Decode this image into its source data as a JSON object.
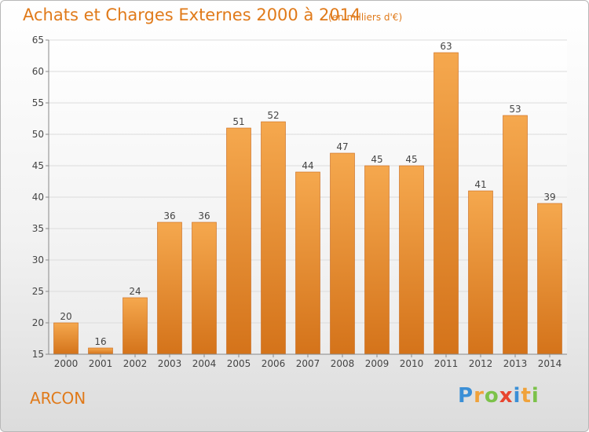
{
  "chart_data": {
    "type": "bar",
    "title": "Achats et Charges Externes 2000 à 2014",
    "subtitle": "(en milliers d'€)",
    "categories": [
      "2000",
      "2001",
      "2002",
      "2003",
      "2004",
      "2005",
      "2006",
      "2007",
      "2008",
      "2009",
      "2010",
      "2011",
      "2012",
      "2013",
      "2014"
    ],
    "values": [
      20,
      16,
      24,
      36,
      36,
      51,
      52,
      44,
      47,
      45,
      45,
      63,
      41,
      53,
      39
    ],
    "ylim": [
      15,
      65
    ],
    "yticks": [
      15,
      20,
      25,
      30,
      35,
      40,
      45,
      50,
      55,
      60,
      65
    ],
    "grid": true,
    "legend": "none",
    "xlabel": "",
    "ylabel": ""
  },
  "footer": {
    "commune": "ARCON",
    "brand": "Proxiti",
    "brand_letters": [
      {
        "char": "P",
        "color": "#3b8fd6"
      },
      {
        "char": "r",
        "color": "#f0a23a"
      },
      {
        "char": "o",
        "color": "#7cc24a"
      },
      {
        "char": "x",
        "color": "#e8452f"
      },
      {
        "char": "i",
        "color": "#3b8fd6"
      },
      {
        "char": "t",
        "color": "#f0a23a"
      },
      {
        "char": "i",
        "color": "#7cc24a"
      }
    ]
  },
  "colors": {
    "accent": "#e07a1a",
    "bar_top": "#f5a84e",
    "bar_bottom": "#d4731a",
    "bar_stroke": "#c8681a"
  }
}
